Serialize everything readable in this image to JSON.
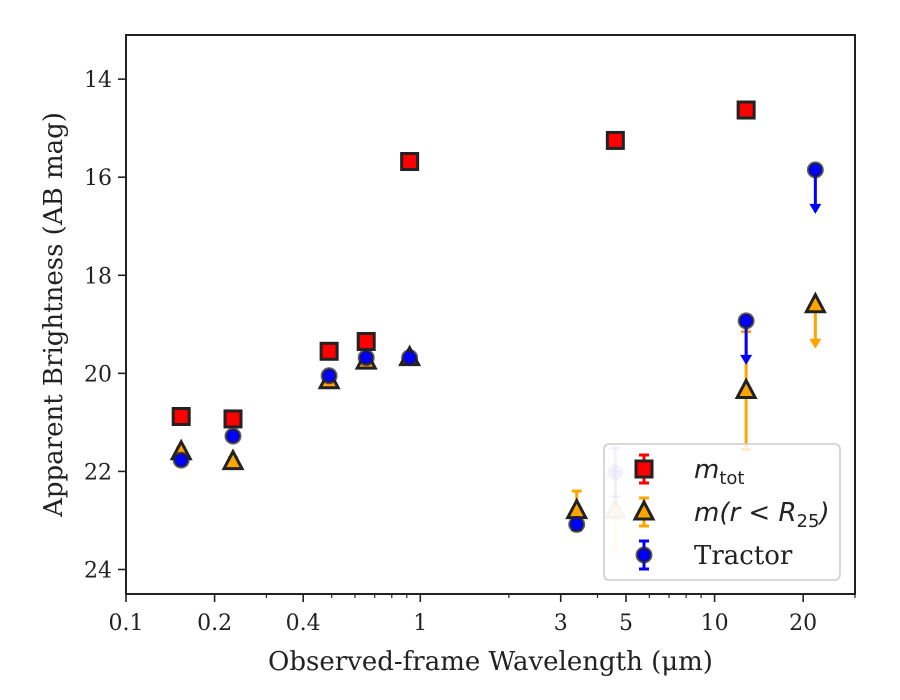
{
  "chart_data": {
    "type": "scatter",
    "title": "",
    "xlabel": "Observed-frame Wavelength (μm)",
    "ylabel": "Apparent Brightness (AB mag)",
    "xscale": "log",
    "xlim": [
      0.1,
      30
    ],
    "ylim": [
      24.5,
      13.1
    ],
    "y_inverted": true,
    "x_ticks": [
      0.1,
      0.2,
      0.4,
      1,
      3,
      5,
      10,
      20
    ],
    "x_tick_labels": [
      "0.1",
      "0.2",
      "0.4",
      "1",
      "3",
      "5",
      "10",
      "20"
    ],
    "y_ticks": [
      14,
      16,
      18,
      20,
      22,
      24
    ],
    "y_tick_labels": [
      "14",
      "16",
      "18",
      "20",
      "22",
      "24"
    ],
    "grid": false,
    "legend_position": "lower-right",
    "colors": {
      "m_tot": "#ff0000",
      "m_r25": "#ffa500",
      "tractor": "#0000ff",
      "edge": "#222222"
    },
    "series": [
      {
        "name": "m_tot",
        "marker": "square",
        "points": [
          {
            "x": 0.154,
            "y": 20.88,
            "err": 0.05,
            "faded": false,
            "upper_limit": false
          },
          {
            "x": 0.231,
            "y": 20.93,
            "err": 0.05,
            "faded": false,
            "upper_limit": false
          },
          {
            "x": 0.49,
            "y": 19.55,
            "err": 0.04,
            "faded": false,
            "upper_limit": false
          },
          {
            "x": 0.655,
            "y": 19.35,
            "err": 0.04,
            "faded": false,
            "upper_limit": false
          },
          {
            "x": 0.92,
            "y": 15.68,
            "err": 0.04,
            "faded": false,
            "upper_limit": false
          },
          {
            "x": 4.6,
            "y": 15.25,
            "err": 0.04,
            "faded": false,
            "upper_limit": false
          },
          {
            "x": 12.8,
            "y": 14.63,
            "err": 0.04,
            "faded": false,
            "upper_limit": false
          }
        ]
      },
      {
        "name": "m(r < R25)",
        "marker": "triangle",
        "points": [
          {
            "x": 0.154,
            "y": 21.6,
            "err": 0.08,
            "faded": false,
            "upper_limit": false
          },
          {
            "x": 0.231,
            "y": 21.8,
            "err": 0.08,
            "faded": false,
            "upper_limit": false
          },
          {
            "x": 0.49,
            "y": 20.15,
            "err": 0.05,
            "faded": false,
            "upper_limit": false
          },
          {
            "x": 0.655,
            "y": 19.75,
            "err": 0.05,
            "faded": false,
            "upper_limit": false
          },
          {
            "x": 0.92,
            "y": 19.68,
            "err": 0.05,
            "faded": false,
            "upper_limit": false
          },
          {
            "x": 3.4,
            "y": 22.8,
            "err": 0.4,
            "faded": false,
            "upper_limit": false
          },
          {
            "x": 4.6,
            "y": 22.8,
            "err": 0.8,
            "faded": true,
            "upper_limit": false
          },
          {
            "x": 12.8,
            "y": 20.35,
            "err": 1.2,
            "faded": false,
            "upper_limit": false
          },
          {
            "x": 22.0,
            "y": 18.6,
            "err": 0,
            "faded": false,
            "upper_limit": true
          }
        ]
      },
      {
        "name": "Tractor",
        "marker": "circle",
        "points": [
          {
            "x": 0.154,
            "y": 21.77,
            "err": 0.08,
            "faded": false,
            "upper_limit": false
          },
          {
            "x": 0.231,
            "y": 21.28,
            "err": 0.08,
            "faded": false,
            "upper_limit": false
          },
          {
            "x": 0.49,
            "y": 20.05,
            "err": 0.05,
            "faded": false,
            "upper_limit": false
          },
          {
            "x": 0.655,
            "y": 19.68,
            "err": 0.05,
            "faded": false,
            "upper_limit": false
          },
          {
            "x": 0.92,
            "y": 19.68,
            "err": 0.05,
            "faded": false,
            "upper_limit": false
          },
          {
            "x": 3.4,
            "y": 23.08,
            "err": 0.1,
            "faded": false,
            "upper_limit": false
          },
          {
            "x": 4.6,
            "y": 22.02,
            "err": 0.5,
            "faded": true,
            "upper_limit": false
          },
          {
            "x": 12.8,
            "y": 18.93,
            "err": 0,
            "faded": false,
            "upper_limit": true
          },
          {
            "x": 22.0,
            "y": 15.85,
            "err": 0,
            "faded": false,
            "upper_limit": true
          }
        ]
      }
    ],
    "legend": [
      {
        "series": "m_tot",
        "label_main": "m",
        "label_sub": "tot"
      },
      {
        "series": "m(r < R25)",
        "label_main": "m(r < R",
        "label_sub": "25",
        "label_tail": ")"
      },
      {
        "series": "Tractor",
        "label_main": "Tractor"
      }
    ]
  }
}
